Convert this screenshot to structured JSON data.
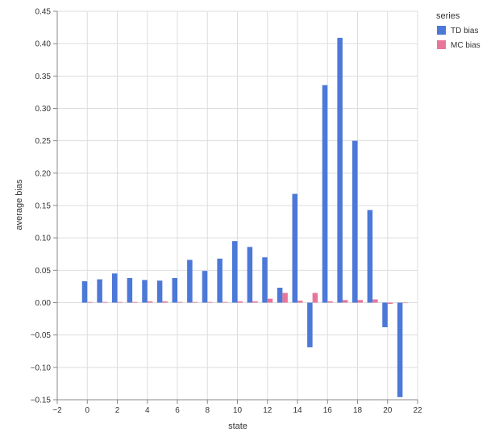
{
  "chart_data": {
    "type": "bar",
    "xlabel": "state",
    "ylabel": "average bias",
    "xlim": [
      -2,
      22
    ],
    "ylim": [
      -0.15,
      0.45
    ],
    "x_ticks": [
      "−2",
      "0",
      "2",
      "4",
      "6",
      "8",
      "10",
      "12",
      "14",
      "16",
      "18",
      "20",
      "22"
    ],
    "y_ticks": [
      "0.45",
      "0.40",
      "0.35",
      "0.30",
      "0.25",
      "0.20",
      "0.15",
      "0.10",
      "0.05",
      "0.00",
      "−0.05",
      "−0.10",
      "−0.15"
    ],
    "grid": true,
    "legend": {
      "title": "series",
      "position": "top-right"
    },
    "x": [
      0,
      1,
      2,
      3,
      4,
      5,
      6,
      7,
      8,
      9,
      10,
      11,
      12,
      13,
      14,
      15,
      16,
      17,
      18,
      19,
      20,
      21
    ],
    "series": [
      {
        "name": "TD bias",
        "color": "#4c78d8",
        "values": [
          0.033,
          0.036,
          0.045,
          0.038,
          0.035,
          0.034,
          0.038,
          0.066,
          0.049,
          0.068,
          0.095,
          0.086,
          0.07,
          0.023,
          0.168,
          -0.069,
          0.336,
          0.409,
          0.25,
          0.143,
          -0.038,
          -0.146
        ]
      },
      {
        "name": "MC bias",
        "color": "#e8769b",
        "values": [
          0.001,
          0.001,
          0.001,
          0.001,
          0.002,
          0.002,
          0.001,
          0.001,
          0.001,
          0.001,
          0.002,
          0.002,
          0.006,
          0.015,
          0.003,
          0.015,
          0.002,
          0.004,
          0.004,
          0.005,
          -0.002,
          0.0
        ]
      }
    ]
  }
}
